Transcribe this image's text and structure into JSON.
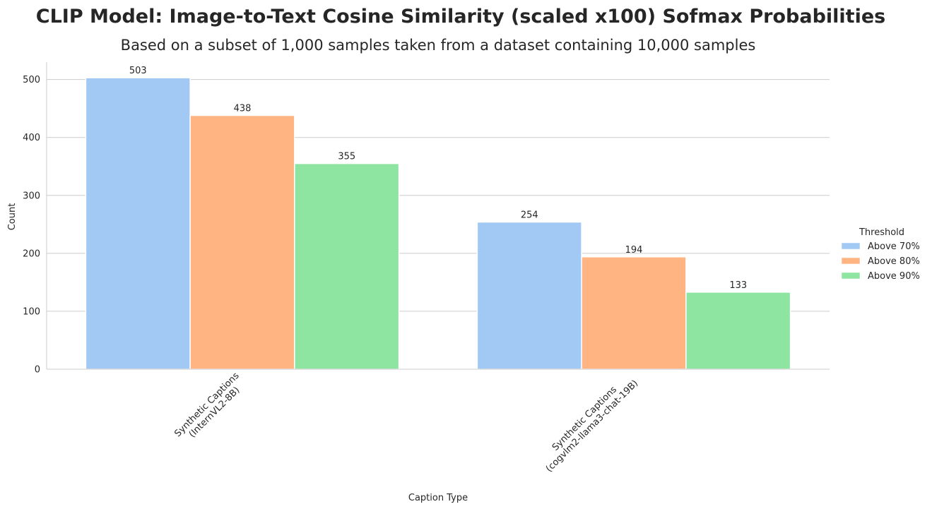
{
  "chart_data": {
    "type": "bar",
    "title": "CLIP Model: Image-to-Text Cosine Similarity (scaled x100) Sofmax Probabilities",
    "subtitle": "Based on a subset of 1,000 samples taken from a dataset containing 10,000 samples",
    "xlabel": "Caption Type",
    "ylabel": "Count",
    "categories": [
      [
        "Synthetic Captions",
        "(InternVL2-8B)"
      ],
      [
        "Synthetic Captions",
        "(cogvlm2-llama3-chat-19B)"
      ]
    ],
    "series": [
      {
        "name": "Above 70%",
        "color": "#a1c9f4",
        "values": [
          503,
          254
        ]
      },
      {
        "name": "Above 80%",
        "color": "#ffb482",
        "values": [
          438,
          194
        ]
      },
      {
        "name": "Above 90%",
        "color": "#8de5a1",
        "values": [
          355,
          133
        ]
      }
    ],
    "ylim": [
      0,
      530
    ],
    "yticks": [
      0,
      100,
      200,
      300,
      400,
      500
    ],
    "grid": true,
    "legend": {
      "title": "Threshold",
      "position": "right"
    },
    "data_labels": true
  }
}
